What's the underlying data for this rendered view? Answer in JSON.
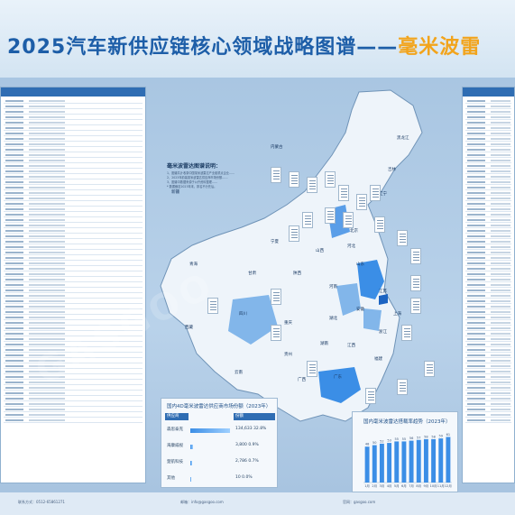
{
  "header": {
    "title_main": "2025汽车新供应链核心领域战略图谱——",
    "title_accent": "毫米波雷"
  },
  "notes": {
    "title": "毫米波雷达图谱说明：",
    "lines": [
      "1、图谱共计收录中国毫米波雷达产业链重点企业……",
      "2、2023年前装毫米波雷达供应商市场份额……",
      "3、图谱中数据来源于公开资料整理……",
      "* 数据截至2023年末，排名不分先后。"
    ]
  },
  "provinces": [
    {
      "name": "黑龙江"
    },
    {
      "name": "吉林"
    },
    {
      "name": "辽宁"
    },
    {
      "name": "内蒙古"
    },
    {
      "name": "新疆"
    },
    {
      "name": "北京"
    },
    {
      "name": "河北"
    },
    {
      "name": "山西"
    },
    {
      "name": "山东"
    },
    {
      "name": "宁夏"
    },
    {
      "name": "甘肃"
    },
    {
      "name": "青海"
    },
    {
      "name": "陕西"
    },
    {
      "name": "河南"
    },
    {
      "name": "江苏"
    },
    {
      "name": "安徽"
    },
    {
      "name": "上海"
    },
    {
      "name": "四川"
    },
    {
      "name": "重庆"
    },
    {
      "name": "湖北"
    },
    {
      "name": "浙江"
    },
    {
      "name": "贵州"
    },
    {
      "name": "湖南"
    },
    {
      "name": "江西"
    },
    {
      "name": "福建"
    },
    {
      "name": "云南"
    },
    {
      "name": "广西"
    },
    {
      "name": "广东"
    },
    {
      "name": "西藏"
    }
  ],
  "bar_table": {
    "title": "国内4D毫米波雷达供应商市场份额（2023年）",
    "headers": [
      "供应商",
      "份额"
    ],
    "rows": [
      {
        "label": "森思泰克",
        "value": "134,633 32.8%",
        "share": 0.33
      },
      {
        "label": "海康威视",
        "value": "3,800 0.9%",
        "share": 0.02
      },
      {
        "label": "楚航科技",
        "value": "2,786 0.7%",
        "share": 0.015
      },
      {
        "label": "其他",
        "value": "10 0.0%",
        "share": 0.003
      }
    ]
  },
  "chart_data": {
    "type": "bar",
    "title": "国内毫米波雷达搭载率趋势（2023年）",
    "categories": [
      "1月",
      "2月",
      "3月",
      "4月",
      "5月",
      "6月",
      "7月",
      "8月",
      "9月",
      "10月",
      "11月",
      "12月"
    ],
    "values": [
      48,
      50,
      52,
      53,
      55,
      55,
      56,
      57,
      58,
      58,
      59,
      61
    ],
    "ylim": [
      0,
      70
    ]
  },
  "footer": {
    "items": [
      "联系方式：0512-65861271",
      "邮箱：info@gasgoo.com",
      "官网：gasgoo.com"
    ]
  }
}
